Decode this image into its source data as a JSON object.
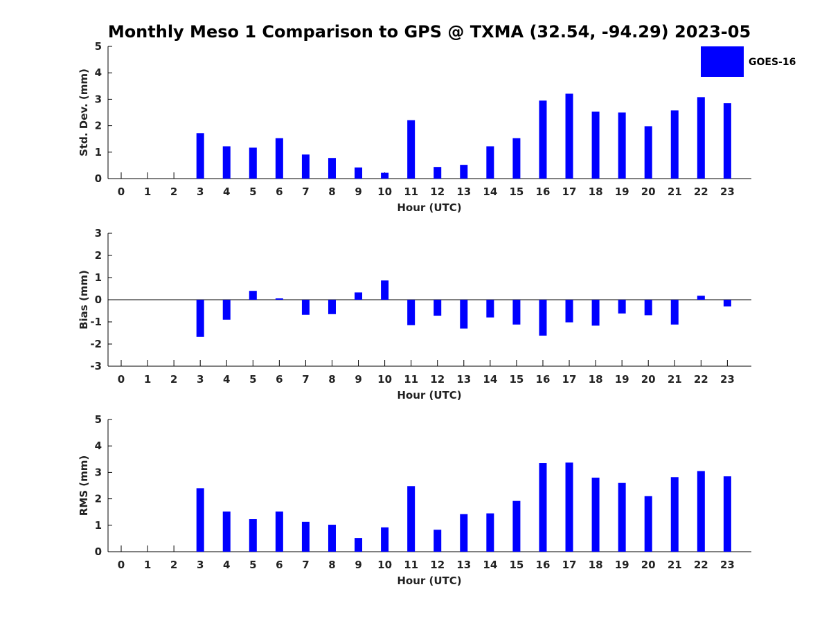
{
  "title": "Monthly Meso 1 Comparison to GPS @ TXMA (32.54, -94.29) 2023-05",
  "legend": {
    "label": "GOES-16",
    "color": "#0000ff",
    "placement": "top-right"
  },
  "chart_data": [
    {
      "type": "bar",
      "ylabel": "Std. Dev. (mm)",
      "xlabel": "Hour (UTC)",
      "ylim": [
        0,
        5
      ],
      "yticks": [
        0,
        1,
        2,
        3,
        4,
        5
      ],
      "categories": [
        "0",
        "1",
        "2",
        "3",
        "4",
        "5",
        "6",
        "7",
        "8",
        "9",
        "10",
        "11",
        "12",
        "13",
        "14",
        "15",
        "16",
        "17",
        "18",
        "19",
        "20",
        "21",
        "22",
        "23"
      ],
      "series": [
        {
          "values": [
            null,
            null,
            null,
            1.72,
            1.22,
            1.17,
            1.53,
            0.91,
            0.78,
            0.42,
            0.22,
            2.21,
            0.44,
            0.52,
            1.22,
            1.53,
            2.95,
            3.21,
            2.53,
            2.5,
            1.98,
            2.58,
            3.08,
            2.85
          ]
        }
      ]
    },
    {
      "type": "bar",
      "ylabel": "Bias (mm)",
      "xlabel": "Hour (UTC)",
      "ylim": [
        -3,
        3
      ],
      "yticks": [
        -3,
        -2,
        -1,
        0,
        1,
        2,
        3
      ],
      "categories": [
        "0",
        "1",
        "2",
        "3",
        "4",
        "5",
        "6",
        "7",
        "8",
        "9",
        "10",
        "11",
        "12",
        "13",
        "14",
        "15",
        "16",
        "17",
        "18",
        "19",
        "20",
        "21",
        "22",
        "23"
      ],
      "series": [
        {
          "values": [
            null,
            null,
            null,
            -1.68,
            -0.9,
            0.4,
            0.06,
            -0.68,
            -0.65,
            0.33,
            0.87,
            -1.15,
            -0.72,
            -1.3,
            -0.8,
            -1.12,
            -1.62,
            -1.02,
            -1.17,
            -0.62,
            -0.7,
            -1.12,
            0.18,
            -0.3
          ]
        }
      ]
    },
    {
      "type": "bar",
      "ylabel": "RMS (mm)",
      "xlabel": "Hour (UTC)",
      "ylim": [
        0,
        5
      ],
      "yticks": [
        0,
        1,
        2,
        3,
        4,
        5
      ],
      "categories": [
        "0",
        "1",
        "2",
        "3",
        "4",
        "5",
        "6",
        "7",
        "8",
        "9",
        "10",
        "11",
        "12",
        "13",
        "14",
        "15",
        "16",
        "17",
        "18",
        "19",
        "20",
        "21",
        "22",
        "23"
      ],
      "series": [
        {
          "values": [
            null,
            null,
            null,
            2.4,
            1.52,
            1.23,
            1.52,
            1.13,
            1.02,
            0.52,
            0.92,
            2.48,
            0.83,
            1.42,
            1.45,
            1.92,
            3.35,
            3.37,
            2.8,
            2.6,
            2.1,
            2.82,
            3.05,
            2.85
          ]
        }
      ]
    }
  ]
}
